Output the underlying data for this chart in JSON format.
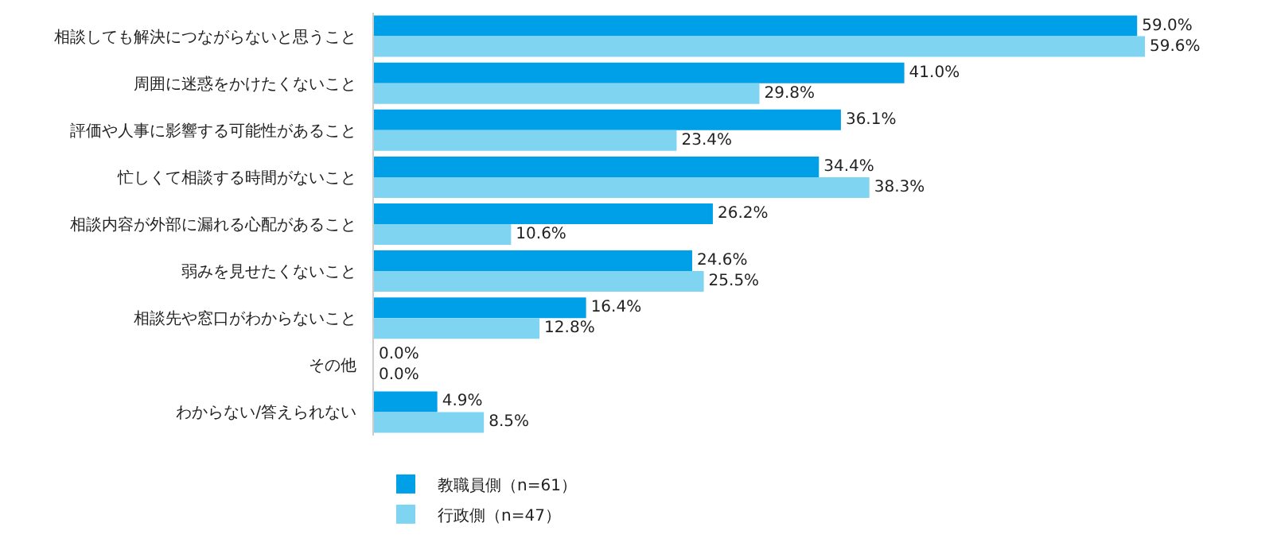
{
  "chart_data": {
    "type": "bar",
    "orientation": "horizontal",
    "categories": [
      "相談しても解決につながらないと思うこと",
      "周囲に迷惑をかけたくないこと",
      "評価や人事に影響する可能性があること",
      "忙しくて相談する時間がないこと",
      "相談内容が外部に漏れる心配があること",
      "弱みを見せたくないこと",
      "相談先や窓口がわからないこと",
      "その他",
      "わからない/答えられない"
    ],
    "series": [
      {
        "name": "教職員側（n=61）",
        "color": "#00a0e9",
        "values": [
          59.0,
          41.0,
          36.1,
          34.4,
          26.2,
          24.6,
          16.4,
          0.0,
          4.9
        ],
        "value_labels": [
          "59.0%",
          "41.0%",
          "36.1%",
          "34.4%",
          "26.2%",
          "24.6%",
          "16.4%",
          "0.0%",
          "4.9%"
        ]
      },
      {
        "name": "行政側（n=47）",
        "color": "#7fd4f2",
        "values": [
          59.6,
          29.8,
          23.4,
          38.3,
          10.6,
          25.5,
          12.8,
          0.0,
          8.5
        ],
        "value_labels": [
          "59.6%",
          "29.8%",
          "23.4%",
          "38.3%",
          "10.6%",
          "25.5%",
          "12.8%",
          "0.0%",
          "8.5%"
        ]
      }
    ],
    "legend": "bottom",
    "tick_labels": "y"
  }
}
